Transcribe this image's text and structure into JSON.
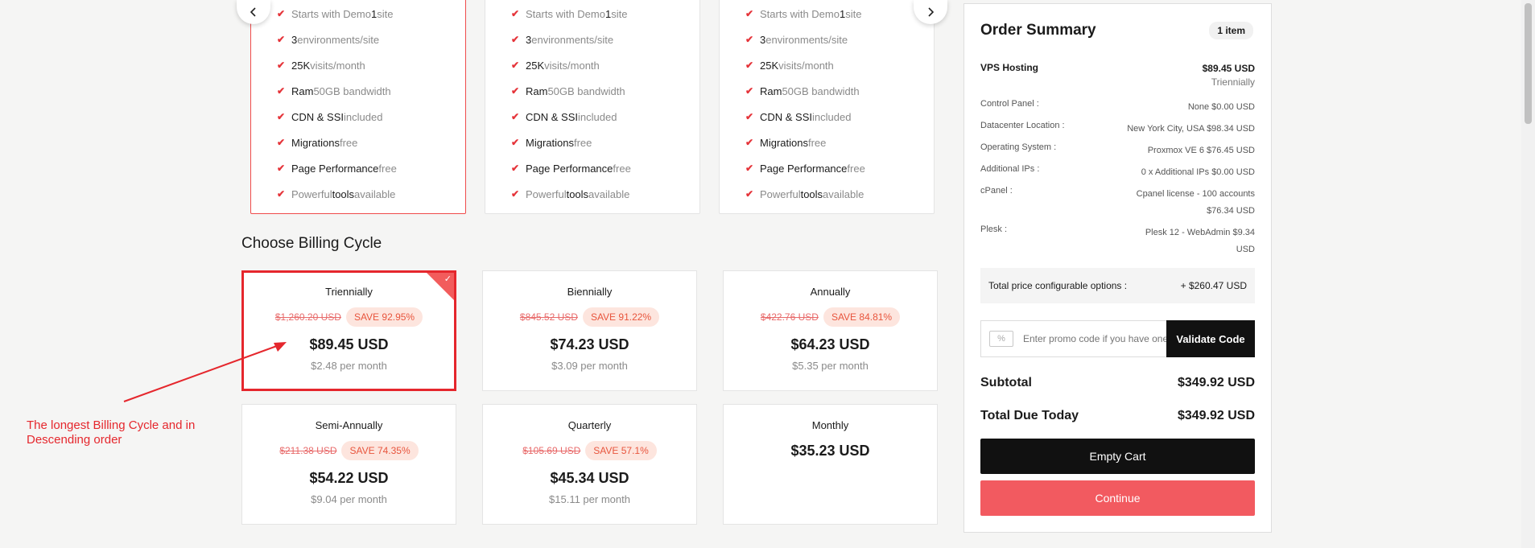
{
  "plans": [
    {
      "selected": true,
      "features": [
        {
          "a": "",
          "b": "Starts with Demo ",
          "c": "1",
          "d": " site"
        },
        {
          "a": "3",
          "b": " environments/site",
          "c": "",
          "d": ""
        },
        {
          "a": "25K",
          "b": " visits/month",
          "c": "",
          "d": ""
        },
        {
          "a": "Ram",
          "b": " 50GB bandwidth",
          "c": "",
          "d": ""
        },
        {
          "a": "CDN & SSI",
          "b": " included",
          "c": "",
          "d": ""
        },
        {
          "a": "Migrations",
          "b": " free",
          "c": "",
          "d": ""
        },
        {
          "a": "Page Performance",
          "b": " free",
          "c": "",
          "d": ""
        },
        {
          "a": "",
          "b": "Powerful ",
          "c": "tools",
          "d": " available"
        }
      ]
    },
    {
      "selected": false,
      "features": [
        {
          "a": "",
          "b": "Starts with Demo ",
          "c": "1",
          "d": " site"
        },
        {
          "a": "3",
          "b": " environments/site",
          "c": "",
          "d": ""
        },
        {
          "a": "25K",
          "b": " visits/month",
          "c": "",
          "d": ""
        },
        {
          "a": "Ram",
          "b": " 50GB bandwidth",
          "c": "",
          "d": ""
        },
        {
          "a": "CDN & SSI",
          "b": " included",
          "c": "",
          "d": ""
        },
        {
          "a": "Migrations",
          "b": " free",
          "c": "",
          "d": ""
        },
        {
          "a": "Page Performance",
          "b": " free",
          "c": "",
          "d": ""
        },
        {
          "a": "",
          "b": "Powerful ",
          "c": "tools",
          "d": " available"
        }
      ]
    },
    {
      "selected": false,
      "features": [
        {
          "a": "",
          "b": "Starts with Demo ",
          "c": "1",
          "d": " site"
        },
        {
          "a": "3",
          "b": " environments/site",
          "c": "",
          "d": ""
        },
        {
          "a": "25K",
          "b": " visits/month",
          "c": "",
          "d": ""
        },
        {
          "a": "Ram",
          "b": " 50GB bandwidth",
          "c": "",
          "d": ""
        },
        {
          "a": "CDN & SSI",
          "b": " included",
          "c": "",
          "d": ""
        },
        {
          "a": "Migrations",
          "b": " free",
          "c": "",
          "d": ""
        },
        {
          "a": "Page Performance",
          "b": " free",
          "c": "",
          "d": ""
        },
        {
          "a": "",
          "b": "Powerful ",
          "c": "tools",
          "d": " available"
        }
      ]
    }
  ],
  "nav": {
    "prev_icon": "chevron-left-icon",
    "next_icon": "chevron-right-icon"
  },
  "billing": {
    "title": "Choose Billing Cycle",
    "cycles": [
      {
        "name": "Triennially",
        "old": "$1,260.20 USD",
        "save": "SAVE 92.95%",
        "price": "$89.45 USD",
        "per_month": "$2.48 per month",
        "selected": true
      },
      {
        "name": "Biennially",
        "old": "$845.52 USD",
        "save": "SAVE 91.22%",
        "price": "$74.23 USD",
        "per_month": "$3.09 per month",
        "selected": false
      },
      {
        "name": "Annually",
        "old": "$422.76 USD",
        "save": "SAVE 84.81%",
        "price": "$64.23 USD",
        "per_month": "$5.35 per month",
        "selected": false
      },
      {
        "name": "Semi-Annually",
        "old": "$211.38 USD",
        "save": "SAVE 74.35%",
        "price": "$54.22 USD",
        "per_month": "$9.04 per month",
        "selected": false
      },
      {
        "name": "Quarterly",
        "old": "$105.69 USD",
        "save": "SAVE 57.1%",
        "price": "$45.34 USD",
        "per_month": "$15.11 per month",
        "selected": false
      },
      {
        "name": "Monthly",
        "old": "",
        "save": "",
        "price": "$35.23 USD",
        "per_month": "",
        "selected": false
      }
    ]
  },
  "annotation": {
    "text": "The longest Billing Cycle and in Descending order",
    "color": "#e5272d"
  },
  "summary": {
    "title": "Order Summary",
    "badge": "1 item",
    "product": {
      "name": "VPS Hosting",
      "price": "$89.45 USD",
      "cycle": "Triennially"
    },
    "options": [
      {
        "label": "Control Panel :",
        "value": "None $0.00 USD"
      },
      {
        "label": "Datacenter Location :",
        "value": "New York City, USA $98.34 USD"
      },
      {
        "label": "Operating System :",
        "value": "Proxmox VE 6 $76.45 USD"
      },
      {
        "label": "Additional IPs :",
        "value": "0 x Additional IPs $0.00 USD"
      },
      {
        "label": "cPanel :",
        "value_line1": "Cpanel license - 100 accounts",
        "value_line2": "$76.34 USD"
      },
      {
        "label": "Plesk :",
        "value_line1": "Plesk 12 - WebAdmin $9.34",
        "value_line2": "USD"
      }
    ],
    "config_total_label": "Total price configurable options :",
    "config_total_value": "+ $260.47 USD",
    "promo_placeholder": "Enter promo code if you have one",
    "validate_label": "Validate Code",
    "subtotal_label": "Subtotal",
    "subtotal_value": "$349.92 USD",
    "total_label": "Total Due Today",
    "total_value": "$349.92 USD",
    "empty_cart_label": "Empty Cart",
    "continue_label": "Continue"
  },
  "colors": {
    "accent": "#e5272d",
    "continue": "#f25a60",
    "dark": "#111111"
  }
}
